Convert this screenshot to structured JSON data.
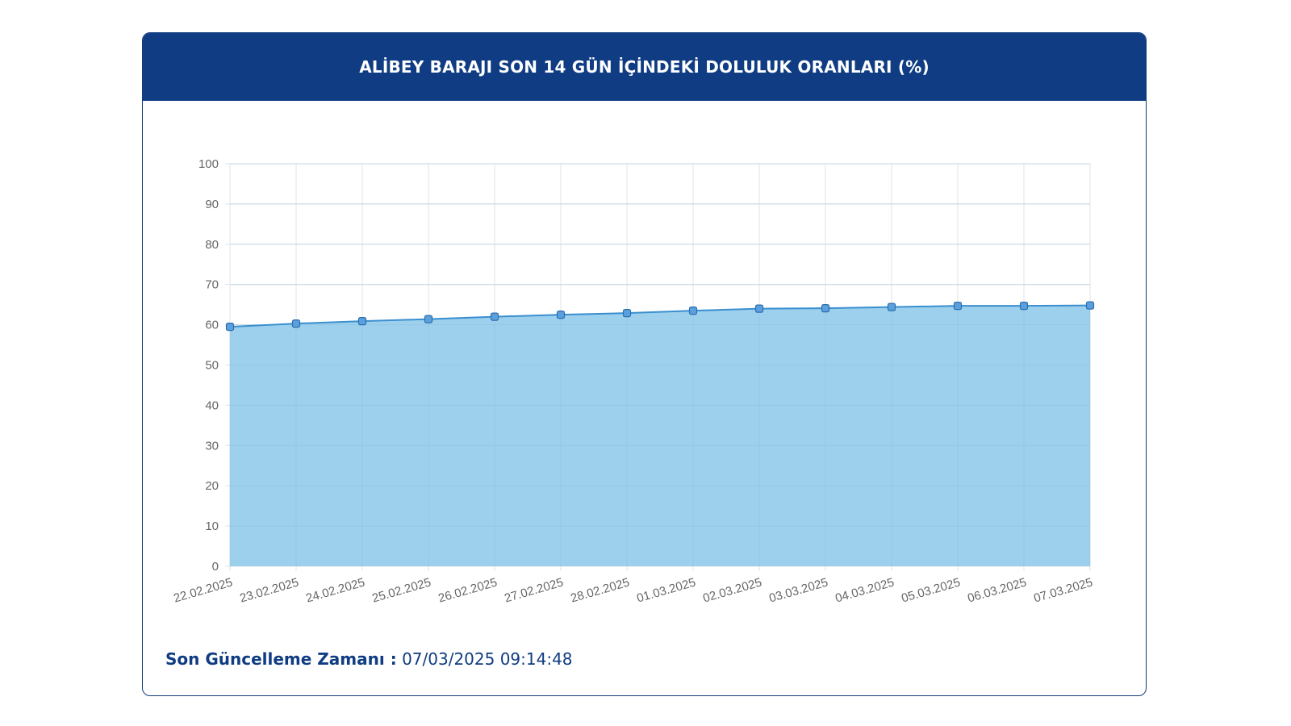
{
  "header": {
    "title": "ALİBEY BARAJI SON 14 GÜN İÇİNDEKİ DOLULUK ORANLARI (%)"
  },
  "footer": {
    "label": "Son Güncelleme Zamanı :",
    "value": "07/03/2025 09:14:48"
  },
  "colors": {
    "header_bg": "#0f3c82",
    "line": "#3a8fd0",
    "fill": "#9dd0ec",
    "point": "#5b9fdc",
    "text_dark": "#0f3c82"
  },
  "chart_data": {
    "type": "area",
    "x": [
      "22.02.2025",
      "23.02.2025",
      "24.02.2025",
      "25.02.2025",
      "26.02.2025",
      "27.02.2025",
      "28.02.2025",
      "01.03.2025",
      "02.03.2025",
      "03.03.2025",
      "04.03.2025",
      "05.03.2025",
      "06.03.2025",
      "07.03.2025"
    ],
    "series": [
      {
        "values": [
          59.5,
          60.3,
          60.9,
          61.4,
          62.0,
          62.5,
          62.9,
          63.5,
          64.0,
          64.1,
          64.4,
          64.7,
          64.7,
          64.8
        ]
      }
    ],
    "ylim": [
      0,
      100
    ],
    "yticks": [
      0,
      10,
      20,
      30,
      40,
      50,
      60,
      70,
      80,
      90,
      100
    ],
    "grid": true,
    "legend": "none"
  }
}
